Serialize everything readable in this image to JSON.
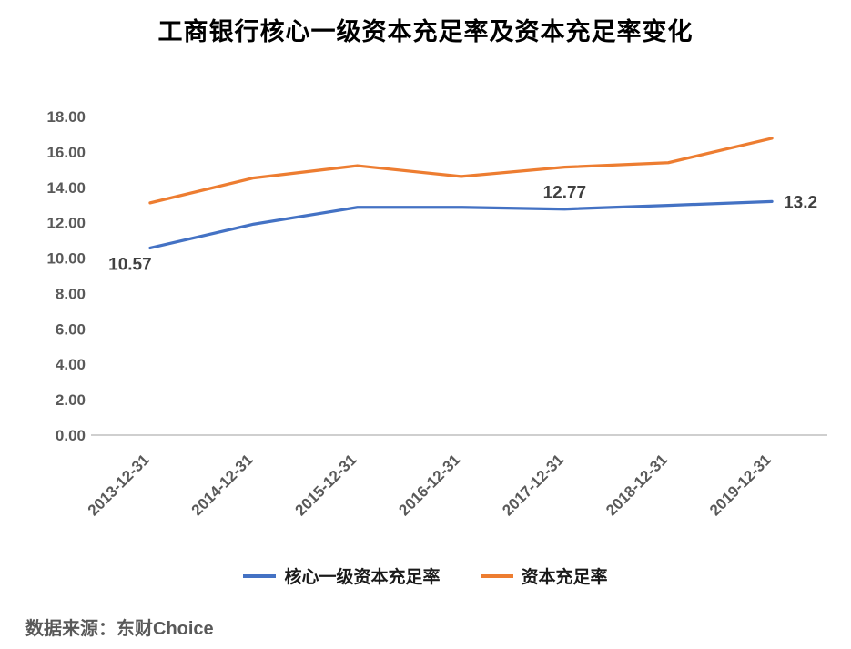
{
  "title": "工商银行核心一级资本充足率及资本充足率变化",
  "source": "数据来源：东财Choice",
  "colors": {
    "series1": "#4472C4",
    "series2": "#ED7D31",
    "axis": "#BFBFBF",
    "tick_text": "#595959",
    "label_text": "#404040"
  },
  "chart_data": {
    "type": "line",
    "title": "工商银行核心一级资本充足率及资本充足率变化",
    "xlabel": "",
    "ylabel": "",
    "categories": [
      "2013-12-31",
      "2014-12-31",
      "2015-12-31",
      "2016-12-31",
      "2017-12-31",
      "2018-12-31",
      "2019-12-31"
    ],
    "series": [
      {
        "name": "核心一级资本充足率",
        "color": "#4472C4",
        "values": [
          10.57,
          11.92,
          12.87,
          12.87,
          12.77,
          12.98,
          13.2
        ],
        "point_labels": [
          {
            "index": 0,
            "text": "10.57",
            "position": "below-left"
          },
          {
            "index": 4,
            "text": "12.77",
            "position": "above"
          },
          {
            "index": 6,
            "text": "13.2",
            "position": "right"
          }
        ]
      },
      {
        "name": "资本充足率",
        "color": "#ED7D31",
        "values": [
          13.12,
          14.53,
          15.22,
          14.61,
          15.14,
          15.39,
          16.77
        ],
        "point_labels": []
      }
    ],
    "ylim": [
      0,
      18
    ],
    "ytick_step": 2,
    "ytick_format_decimals": 2,
    "grid": false,
    "legend_position": "bottom"
  }
}
